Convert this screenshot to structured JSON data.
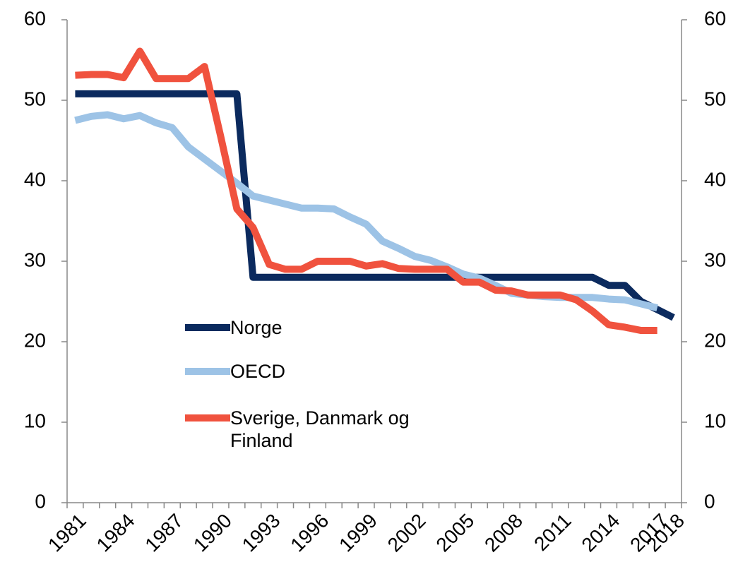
{
  "chart_data": {
    "type": "line",
    "categories": [
      "1981",
      null,
      null,
      "1984",
      null,
      null,
      "1987",
      null,
      null,
      "1990",
      null,
      null,
      "1993",
      null,
      null,
      "1996",
      null,
      null,
      "1999",
      null,
      null,
      "2002",
      null,
      null,
      "2005",
      null,
      null,
      "2008",
      null,
      null,
      "2011",
      null,
      null,
      "2014",
      null,
      null,
      "2017",
      "2018"
    ],
    "series": [
      {
        "name": "Norge",
        "color": "#0b2a5e",
        "values": [
          50.8,
          50.8,
          50.8,
          50.8,
          50.8,
          50.8,
          50.8,
          50.8,
          50.8,
          50.8,
          50.8,
          28,
          28,
          28,
          28,
          28,
          28,
          28,
          28,
          28,
          28,
          28,
          28,
          28,
          28,
          28,
          28,
          28,
          28,
          28,
          28,
          28,
          28,
          27,
          27,
          25,
          24,
          23
        ]
      },
      {
        "name": "OECD",
        "color": "#9dc3e6",
        "values": [
          47.5,
          48,
          48.2,
          47.7,
          48.1,
          47.2,
          46.6,
          44.2,
          42.7,
          41.2,
          39.7,
          38.1,
          37.6,
          37.1,
          36.6,
          36.6,
          36.5,
          35.5,
          34.6,
          32.5,
          31.6,
          30.6,
          30.1,
          29.3,
          28.4,
          27.9,
          27,
          26,
          25.8,
          25.6,
          25.5,
          25.5,
          25.5,
          25.3,
          25.2,
          24.7,
          24.2,
          null
        ]
      },
      {
        "name": "Sverige, Danmark og Finland",
        "color": "#f0523e",
        "values": [
          53.1,
          53.2,
          53.2,
          52.8,
          56.1,
          52.7,
          52.7,
          52.7,
          54.2,
          45.5,
          36.5,
          34.2,
          29.6,
          29,
          29,
          30,
          30,
          30,
          29.4,
          29.7,
          29.1,
          29,
          29,
          29,
          27.4,
          27.4,
          26.4,
          26.3,
          25.8,
          25.8,
          25.8,
          25.2,
          23.8,
          22.1,
          21.8,
          21.4,
          21.4,
          null
        ]
      }
    ],
    "ylim": [
      0,
      60
    ],
    "yticks": [
      0,
      10,
      20,
      30,
      40,
      50,
      60
    ],
    "y2lim": [
      0,
      60
    ],
    "y2ticks": [
      0,
      10,
      20,
      30,
      40,
      50,
      60
    ],
    "grid": false
  }
}
